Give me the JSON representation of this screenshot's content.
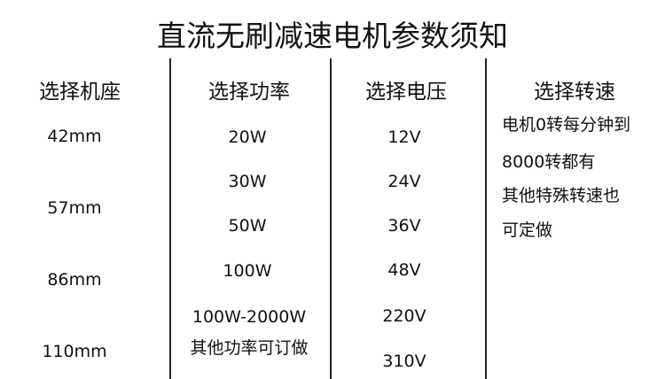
{
  "title": "直流无刷减速电机参数须知",
  "columns": [
    {
      "header": "选择机座",
      "items": [
        "42mm",
        "57mm",
        "86mm",
        "110mm"
      ]
    },
    {
      "header": "选择功率",
      "items": [
        "20W",
        "30W",
        "50W",
        "100W",
        "100W-2000W",
        "其他功率可订做"
      ]
    },
    {
      "header": "选择电压",
      "items": [
        "12V",
        "24V",
        "36V",
        "48V",
        "220V",
        "310V"
      ]
    },
    {
      "header": "选择转速",
      "items": [
        "电机0转每分钟到",
        "8000转都有",
        "其他特殊转速也",
        "可定做"
      ]
    }
  ]
}
